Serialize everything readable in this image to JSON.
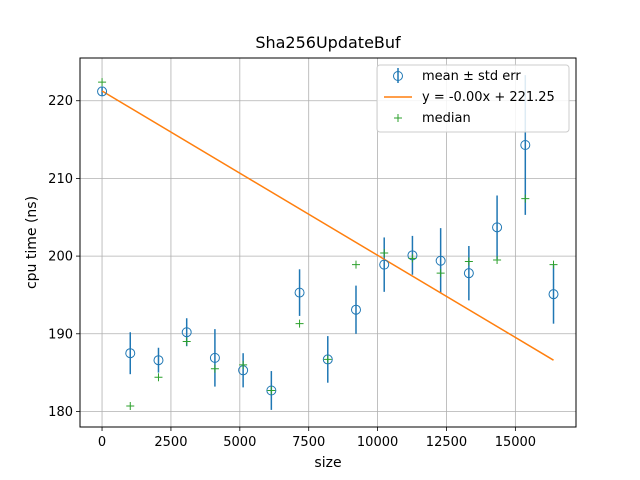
{
  "chart_data": {
    "type": "scatter",
    "title": "Sha256UpdateBuf",
    "xlabel": "size",
    "ylabel": "cpu time (ns)",
    "xlim": [
      -800,
      17200
    ],
    "ylim": [
      178,
      225.5
    ],
    "xticks": [
      0,
      2500,
      5000,
      7500,
      10000,
      12500,
      15000
    ],
    "xtick_labels": [
      "0",
      "2500",
      "5000",
      "7500",
      "10000",
      "12500",
      "15000"
    ],
    "yticks": [
      180,
      190,
      200,
      210,
      220
    ],
    "ytick_labels": [
      "180",
      "190",
      "200",
      "210",
      "220"
    ],
    "grid": true,
    "legend_position": "top-right",
    "colors": {
      "mean": "#1f77b4",
      "fit": "#ff7f0e",
      "median": "#2ca02c"
    },
    "series": [
      {
        "name": "mean ± std err",
        "kind": "errorbar",
        "x": [
          1,
          1024,
          2048,
          3072,
          4096,
          5120,
          6144,
          7168,
          8192,
          9216,
          10240,
          11264,
          12288,
          13312,
          14336,
          15360,
          16384
        ],
        "y": [
          221.2,
          187.5,
          186.6,
          190.2,
          186.9,
          185.3,
          182.7,
          195.3,
          186.7,
          193.1,
          198.9,
          200.1,
          199.4,
          197.8,
          203.7,
          214.3,
          195.1
        ],
        "yerr": [
          0.6,
          2.7,
          1.6,
          1.8,
          3.7,
          2.2,
          2.5,
          3.0,
          3.0,
          3.1,
          3.5,
          2.5,
          4.2,
          3.5,
          4.1,
          9.0,
          3.8
        ]
      },
      {
        "name": "y = -0.00x + 221.25",
        "kind": "line",
        "x": [
          1,
          16384
        ],
        "y": [
          221.25,
          186.6
        ]
      },
      {
        "name": "median",
        "kind": "scatter",
        "x": [
          1,
          1024,
          2048,
          3072,
          4096,
          5120,
          6144,
          7168,
          8192,
          9216,
          10240,
          11264,
          12288,
          13312,
          14336,
          15360,
          16384
        ],
        "y": [
          222.4,
          180.7,
          184.4,
          189.0,
          185.5,
          186.0,
          182.7,
          191.3,
          186.7,
          198.9,
          200.4,
          199.7,
          197.8,
          199.3,
          199.5,
          207.4,
          198.9
        ]
      }
    ]
  }
}
